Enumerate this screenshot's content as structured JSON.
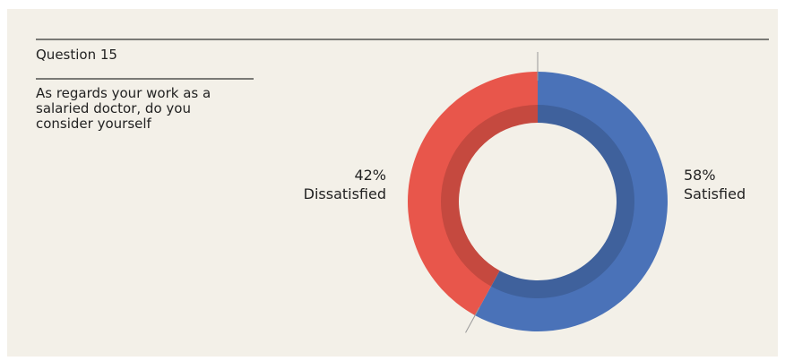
{
  "chart_data": {
    "type": "pie",
    "donut": true,
    "title": "Question 15",
    "subtitle": "As regards your work as a salaried doctor, do you consider yourself",
    "categories": [
      "Satisfied",
      "Dissatisfied"
    ],
    "values": [
      58,
      42
    ],
    "value_labels": [
      "58%",
      "42%"
    ],
    "colors": [
      "#4a72b8",
      "#e8564b"
    ]
  }
}
